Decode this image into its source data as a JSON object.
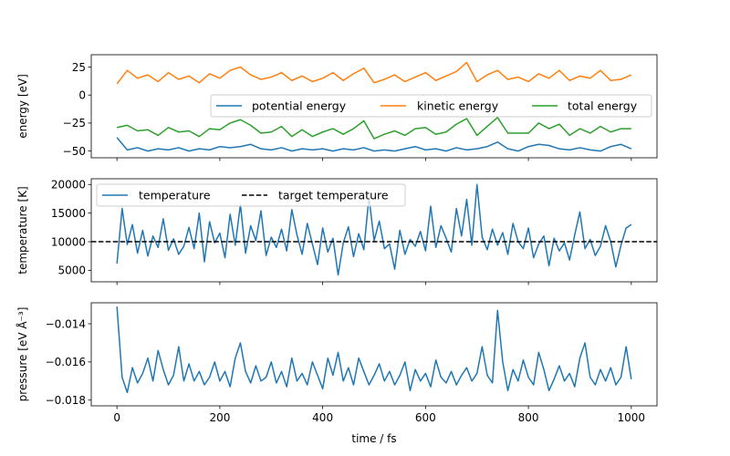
{
  "chart_data": [
    {
      "type": "line",
      "panel": "energy",
      "ylabel": "energy [eV]",
      "xlim": [
        -50,
        1050
      ],
      "ylim": [
        -56,
        36
      ],
      "yticks": [
        -50,
        -25,
        0,
        25
      ],
      "ytick_labels": [
        "−50",
        "−25",
        "0",
        "25"
      ],
      "xticks": [
        0,
        200,
        400,
        600,
        800,
        1000
      ],
      "legend": {
        "placement": "right",
        "columns": 3
      },
      "series": [
        {
          "name": "potential energy",
          "color": "#1f77b4",
          "x": [
            0,
            20,
            40,
            60,
            80,
            100,
            120,
            140,
            160,
            180,
            200,
            220,
            240,
            260,
            280,
            300,
            320,
            340,
            360,
            380,
            400,
            420,
            440,
            460,
            480,
            500,
            520,
            540,
            560,
            580,
            600,
            620,
            640,
            660,
            680,
            700,
            720,
            740,
            760,
            780,
            800,
            820,
            840,
            860,
            880,
            900,
            920,
            940,
            960,
            980,
            1000
          ],
          "values": [
            -38,
            -49,
            -47,
            -50,
            -48,
            -49,
            -47,
            -50,
            -48,
            -49,
            -46,
            -47,
            -46,
            -44,
            -48,
            -49,
            -47,
            -50,
            -48,
            -49,
            -48,
            -50,
            -48,
            -49,
            -47,
            -50,
            -49,
            -50,
            -48,
            -46,
            -49,
            -48,
            -50,
            -47,
            -49,
            -48,
            -46,
            -42,
            -48,
            -50,
            -46,
            -44,
            -45,
            -48,
            -49,
            -47,
            -49,
            -50,
            -46,
            -44,
            -48
          ]
        },
        {
          "name": "kinetic energy",
          "color": "#ff7f0e",
          "x": [
            0,
            20,
            40,
            60,
            80,
            100,
            120,
            140,
            160,
            180,
            200,
            220,
            240,
            260,
            280,
            300,
            320,
            340,
            360,
            380,
            400,
            420,
            440,
            460,
            480,
            500,
            520,
            540,
            560,
            580,
            600,
            620,
            640,
            660,
            680,
            700,
            720,
            740,
            760,
            780,
            800,
            820,
            840,
            860,
            880,
            900,
            920,
            940,
            960,
            980,
            1000
          ],
          "values": [
            10,
            22,
            15,
            18,
            12,
            20,
            14,
            17,
            11,
            19,
            15,
            22,
            25,
            18,
            14,
            16,
            20,
            13,
            17,
            12,
            15,
            20,
            13,
            19,
            24,
            11,
            14,
            18,
            12,
            16,
            20,
            13,
            17,
            21,
            29,
            12,
            18,
            22,
            14,
            16,
            12,
            19,
            15,
            22,
            13,
            17,
            15,
            22,
            13,
            14,
            18
          ]
        },
        {
          "name": "total energy",
          "color": "#2ca02c",
          "x": [
            0,
            20,
            40,
            60,
            80,
            100,
            120,
            140,
            160,
            180,
            200,
            220,
            240,
            260,
            280,
            300,
            320,
            340,
            360,
            380,
            400,
            420,
            440,
            460,
            480,
            500,
            520,
            540,
            560,
            580,
            600,
            620,
            640,
            660,
            680,
            700,
            720,
            740,
            760,
            780,
            800,
            820,
            840,
            860,
            880,
            900,
            920,
            940,
            960,
            980,
            1000
          ],
          "values": [
            -29,
            -27,
            -32,
            -31,
            -36,
            -29,
            -33,
            -32,
            -37,
            -30,
            -31,
            -25,
            -22,
            -27,
            -34,
            -33,
            -28,
            -37,
            -31,
            -37,
            -33,
            -30,
            -35,
            -30,
            -23,
            -39,
            -35,
            -32,
            -36,
            -30,
            -29,
            -35,
            -33,
            -26,
            -21,
            -36,
            -28,
            -20,
            -34,
            -34,
            -34,
            -25,
            -30,
            -26,
            -36,
            -30,
            -34,
            -28,
            -33,
            -30,
            -30
          ]
        }
      ]
    },
    {
      "type": "line",
      "panel": "temperature",
      "ylabel": "temperature [K]",
      "xlim": [
        -50,
        1050
      ],
      "ylim": [
        3000,
        21000
      ],
      "yticks": [
        5000,
        10000,
        15000,
        20000
      ],
      "ytick_labels": [
        "5000",
        "10000",
        "15000",
        "20000"
      ],
      "xticks": [
        0,
        200,
        400,
        600,
        800,
        1000
      ],
      "legend": {
        "placement": "top-left",
        "columns": 2
      },
      "series": [
        {
          "name": "temperature",
          "color": "#1f77b4",
          "x": [
            0,
            10,
            20,
            30,
            40,
            50,
            60,
            70,
            80,
            90,
            100,
            110,
            120,
            130,
            140,
            150,
            160,
            170,
            180,
            190,
            200,
            210,
            220,
            230,
            240,
            250,
            260,
            270,
            280,
            290,
            300,
            310,
            320,
            330,
            340,
            350,
            360,
            370,
            380,
            390,
            400,
            410,
            420,
            430,
            440,
            450,
            460,
            470,
            480,
            490,
            500,
            510,
            520,
            530,
            540,
            550,
            560,
            570,
            580,
            590,
            600,
            610,
            620,
            630,
            640,
            650,
            660,
            670,
            680,
            690,
            700,
            710,
            720,
            730,
            740,
            750,
            760,
            770,
            780,
            790,
            800,
            810,
            820,
            830,
            840,
            850,
            860,
            870,
            880,
            890,
            900,
            910,
            920,
            930,
            940,
            950,
            960,
            970,
            980,
            990,
            1000
          ],
          "values": [
            6200,
            15800,
            9500,
            13000,
            8000,
            12000,
            7500,
            11000,
            9000,
            14000,
            8500,
            10500,
            7800,
            9200,
            12500,
            8800,
            15000,
            6500,
            13500,
            9800,
            11500,
            7200,
            14800,
            9400,
            16500,
            8000,
            12800,
            10200,
            15400,
            7600,
            10800,
            9000,
            12200,
            8400,
            15600,
            11200,
            7800,
            13200,
            9600,
            6000,
            12400,
            8200,
            10600,
            4200,
            9800,
            12600,
            7400,
            11400,
            8600,
            17800,
            10200,
            13600,
            8800,
            9600,
            5200,
            12000,
            7800,
            10400,
            9200,
            11800,
            8400,
            16200,
            9000,
            12800,
            10600,
            8200,
            15800,
            11000,
            17400,
            9400,
            20000,
            10800,
            8600,
            12200,
            9400,
            11600,
            7800,
            13200,
            10000,
            8800,
            12400,
            7200,
            9600,
            11000,
            5800,
            10600,
            8400,
            9800,
            6800,
            11200,
            15200,
            8800,
            10400,
            7600,
            9200,
            12800,
            10000,
            5600,
            9400,
            12400,
            13000
          ]
        },
        {
          "name": "target temperature",
          "color": "#000000",
          "style": "dashed",
          "y": 10000
        }
      ]
    },
    {
      "type": "line",
      "panel": "pressure",
      "ylabel": "pressure [eV Å⁻³]",
      "xlabel": "time / fs",
      "xlim": [
        -50,
        1050
      ],
      "ylim": [
        -0.0183,
        -0.0129
      ],
      "yticks": [
        -0.018,
        -0.016,
        -0.014
      ],
      "ytick_labels": [
        "−0.018",
        "−0.016",
        "−0.014"
      ],
      "xticks": [
        0,
        200,
        400,
        600,
        800,
        1000
      ],
      "xtick_labels": [
        "0",
        "200",
        "400",
        "600",
        "800",
        "1000"
      ],
      "series": [
        {
          "name": "pressure",
          "color": "#1f77b4",
          "x": [
            0,
            10,
            20,
            30,
            40,
            50,
            60,
            70,
            80,
            90,
            100,
            110,
            120,
            130,
            140,
            150,
            160,
            170,
            180,
            190,
            200,
            210,
            220,
            230,
            240,
            250,
            260,
            270,
            280,
            290,
            300,
            310,
            320,
            330,
            340,
            350,
            360,
            370,
            380,
            390,
            400,
            410,
            420,
            430,
            440,
            450,
            460,
            470,
            480,
            490,
            500,
            510,
            520,
            530,
            540,
            550,
            560,
            570,
            580,
            590,
            600,
            610,
            620,
            630,
            640,
            650,
            660,
            670,
            680,
            690,
            700,
            710,
            720,
            730,
            740,
            750,
            760,
            770,
            780,
            790,
            800,
            810,
            820,
            830,
            840,
            850,
            860,
            870,
            880,
            890,
            900,
            910,
            920,
            930,
            940,
            950,
            960,
            970,
            980,
            990,
            1000
          ],
          "values": [
            -0.0131,
            -0.0168,
            -0.0176,
            -0.0163,
            -0.0171,
            -0.0166,
            -0.0158,
            -0.017,
            -0.0154,
            -0.0164,
            -0.0172,
            -0.0167,
            -0.0152,
            -0.017,
            -0.0161,
            -0.017,
            -0.0165,
            -0.0172,
            -0.0168,
            -0.016,
            -0.017,
            -0.0165,
            -0.0173,
            -0.0158,
            -0.015,
            -0.0165,
            -0.0171,
            -0.0162,
            -0.017,
            -0.0168,
            -0.016,
            -0.0171,
            -0.0165,
            -0.0173,
            -0.0158,
            -0.017,
            -0.0166,
            -0.0172,
            -0.016,
            -0.0167,
            -0.0174,
            -0.0158,
            -0.0167,
            -0.0155,
            -0.017,
            -0.0163,
            -0.0172,
            -0.0158,
            -0.0165,
            -0.0172,
            -0.0167,
            -0.0161,
            -0.017,
            -0.0165,
            -0.0172,
            -0.0167,
            -0.016,
            -0.0175,
            -0.0164,
            -0.017,
            -0.0166,
            -0.0173,
            -0.0159,
            -0.0168,
            -0.0171,
            -0.0165,
            -0.0172,
            -0.0167,
            -0.0163,
            -0.017,
            -0.0166,
            -0.0152,
            -0.0167,
            -0.0171,
            -0.0133,
            -0.016,
            -0.0175,
            -0.0164,
            -0.017,
            -0.0159,
            -0.0168,
            -0.0172,
            -0.0155,
            -0.0164,
            -0.0175,
            -0.0169,
            -0.0162,
            -0.017,
            -0.0166,
            -0.0173,
            -0.0158,
            -0.015,
            -0.0168,
            -0.0172,
            -0.0164,
            -0.017,
            -0.0163,
            -0.0172,
            -0.0168,
            -0.0152,
            -0.0169
          ]
        }
      ]
    }
  ]
}
